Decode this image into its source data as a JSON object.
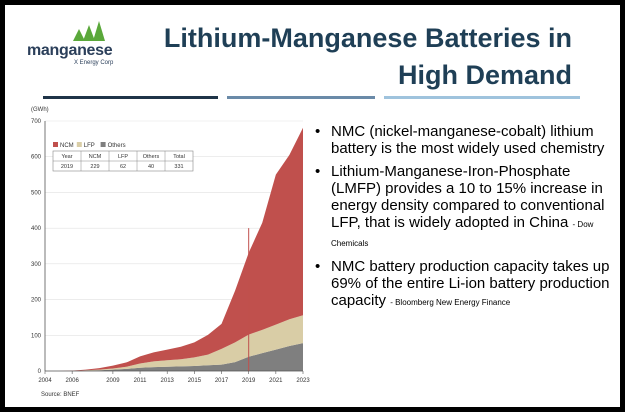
{
  "logo": {
    "wordmark": "manganese",
    "tagline": "X Energy Corp"
  },
  "title": {
    "line1": "Lithium-Manganese Batteries in",
    "line2": "High Demand"
  },
  "colors": {
    "title": "#1f3f56",
    "rule_dark": "#1f3448",
    "rule_mid": "#6a8aa8",
    "rule_light": "#9fc3dd",
    "ncm": "#c0504d",
    "lfp": "#d9cda6",
    "others": "#7f7f7f",
    "marker": "#c0504d"
  },
  "bullets": [
    {
      "text": "NMC (nickel-manganese-cobalt) lithium battery is the most widely used chemistry",
      "source": ""
    },
    {
      "text": "Lithium-Manganese-Iron-Phosphate (LMFP) provides a 10 to 15% increase in energy density compared to conventional LFP, that is widely adopted in China",
      "source": "- Dow Chemicals"
    },
    {
      "text": "NMC battery production capacity takes up 69% of the entire Li-ion battery production capacity",
      "source": "- Bloomberg New Energy Finance"
    }
  ],
  "chart_data": {
    "type": "area",
    "stacked": true,
    "ylabel": "(GWh)",
    "source": "Source: BNEF",
    "ylim": [
      0,
      700
    ],
    "yticks": [
      "0",
      "100",
      "200",
      "300",
      "400",
      "500",
      "600",
      "700"
    ],
    "xtick_labels": [
      "2004",
      "2006",
      "2009",
      "2011",
      "2013",
      "2015",
      "2017",
      "2019",
      "2021",
      "2023"
    ],
    "legend": [
      "NCM",
      "LFP",
      "Others"
    ],
    "legend_position": "top-left",
    "x": [
      "2004",
      "2005",
      "2006",
      "2007",
      "2008",
      "2009",
      "2010",
      "2011",
      "2012",
      "2013",
      "2014",
      "2015",
      "2016",
      "2017",
      "2018",
      "2019",
      "2020",
      "2021",
      "2022",
      "2023"
    ],
    "series": [
      {
        "name": "Others",
        "values": [
          0,
          0,
          0,
          1,
          2,
          4,
          6,
          9,
          11,
          12,
          13,
          14,
          16,
          18,
          25,
          40,
          50,
          60,
          70,
          78
        ]
      },
      {
        "name": "LFP",
        "values": [
          0,
          0,
          0,
          1,
          2,
          3,
          6,
          12,
          16,
          18,
          20,
          24,
          30,
          44,
          55,
          62,
          65,
          70,
          75,
          78
        ]
      },
      {
        "name": "NCM",
        "values": [
          0,
          0,
          1,
          2,
          4,
          8,
          12,
          20,
          25,
          30,
          35,
          42,
          55,
          70,
          145,
          229,
          300,
          420,
          460,
          525
        ]
      }
    ],
    "marker_year": "2019",
    "inset_table": {
      "headers": [
        "Year",
        "NCM",
        "LFP",
        "Others",
        "Total"
      ],
      "row": [
        "2019",
        "229",
        "62",
        "40",
        "331"
      ]
    }
  }
}
